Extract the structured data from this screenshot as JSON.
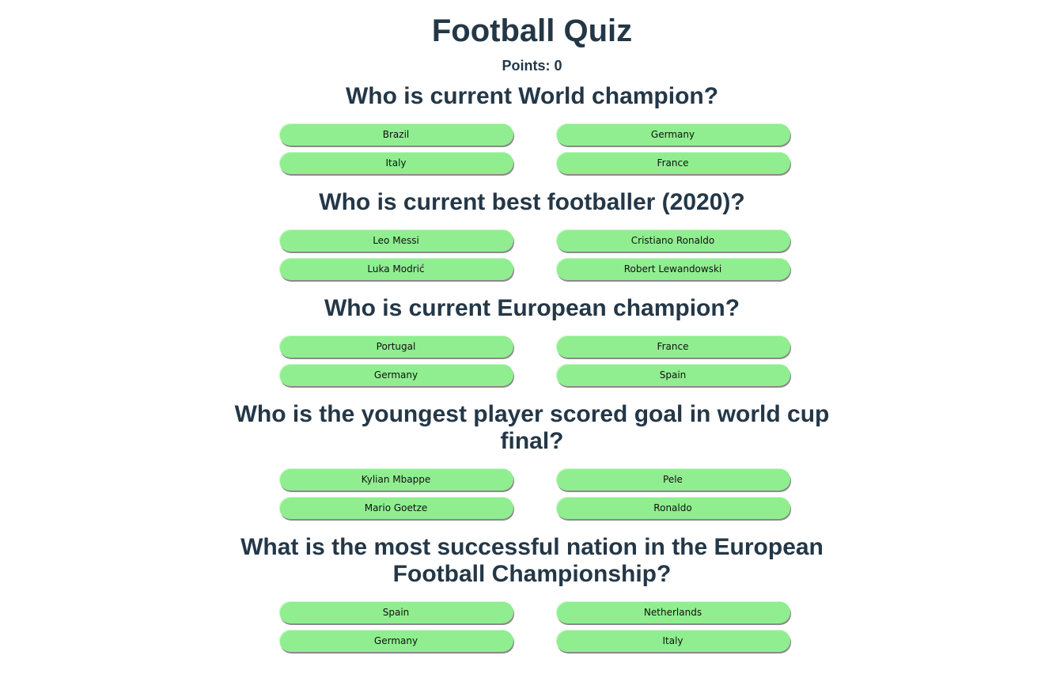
{
  "quiz": {
    "title": "Football Quiz",
    "points_label": "Points: 0",
    "questions": [
      {
        "text": "Who is current World champion?",
        "answers": [
          "Brazil",
          "Germany",
          "Italy",
          "France"
        ]
      },
      {
        "text": "Who is current best footballer (2020)?",
        "answers": [
          "Leo Messi",
          "Cristiano Ronaldo",
          "Luka Modrić",
          "Robert Lewandowski"
        ]
      },
      {
        "text": "Who is current European champion?",
        "answers": [
          "Portugal",
          "France",
          "Germany",
          "Spain"
        ]
      },
      {
        "text": "Who is the youngest player scored goal in world cup final?",
        "answers": [
          "Kylian Mbappe",
          "Pele",
          "Mario Goetze",
          "Ronaldo"
        ]
      },
      {
        "text": "What is the most successful nation in the European Football Championship?",
        "answers": [
          "Spain",
          "Netherlands",
          "Germany",
          "Italy"
        ]
      }
    ]
  },
  "colors": {
    "text": "#233747",
    "answer_button": "#90ee90"
  }
}
